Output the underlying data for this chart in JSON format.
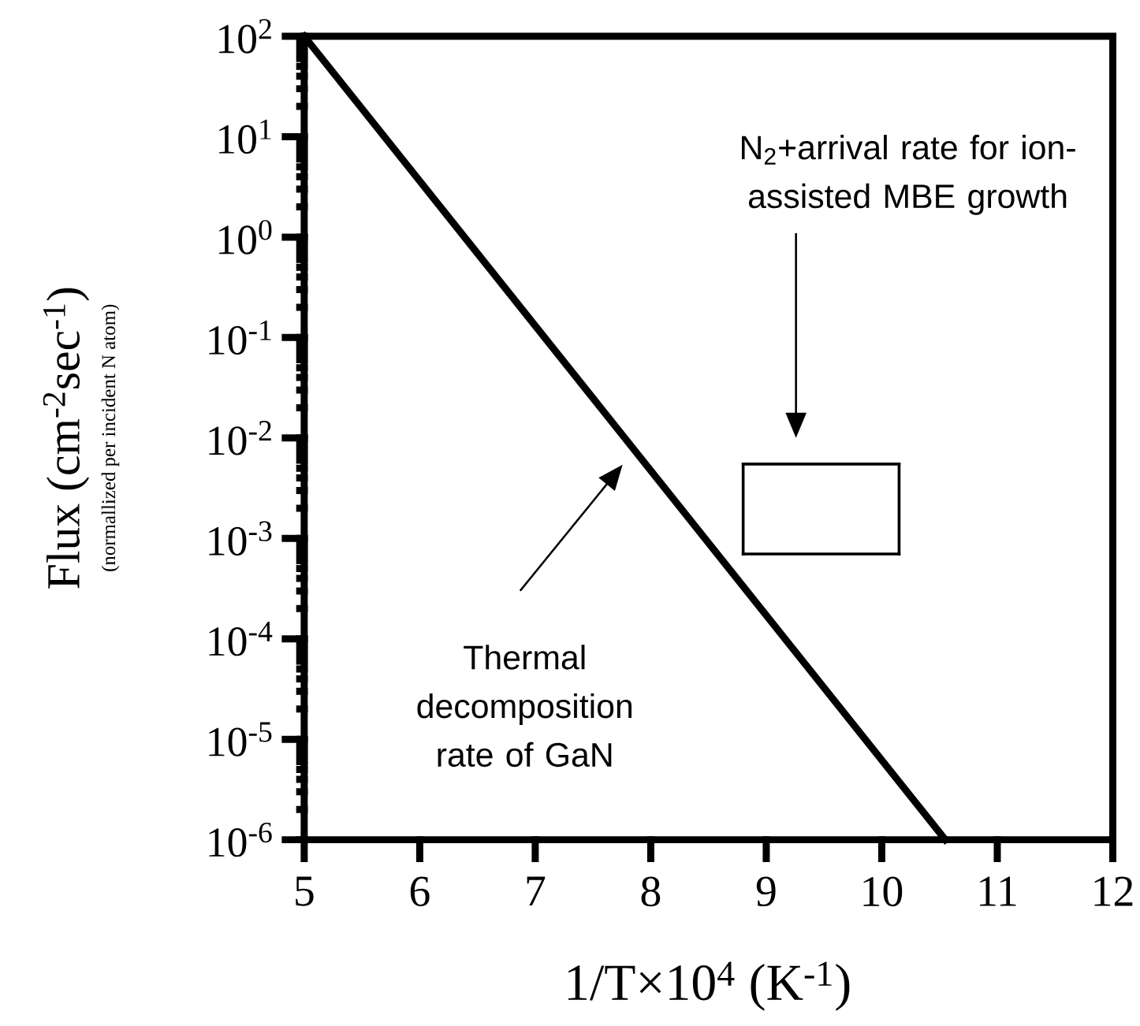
{
  "chart_data": {
    "type": "line",
    "xlabel": "1/T×10$^{4}$ (K$^{-1}$)",
    "ylabel": "Flux (cm$^{-2}$sec$^{-1}$)",
    "log": "y",
    "grid": false,
    "marker": "none",
    "xlim": [
      5,
      12
    ],
    "xticks": [
      5,
      6,
      7,
      8,
      9,
      10,
      11,
      12
    ],
    "ylim": [
      1e-06,
      100
    ],
    "yticks": [
      {
        "value": 1e-06,
        "label": "10$^{-6}$"
      },
      {
        "value": 1e-05,
        "label": "10$^{-5}$"
      },
      {
        "value": 0.0001,
        "label": "10$^{-4}$"
      },
      {
        "value": 0.001,
        "label": "10$^{-3}$"
      },
      {
        "value": 0.01,
        "label": "10$^{-2}$"
      },
      {
        "value": 0.1,
        "label": "10$^{-1}$"
      },
      {
        "value": 1,
        "label": "10$^{0}$"
      },
      {
        "value": 10,
        "label": "10$^{1}$"
      },
      {
        "value": 100,
        "label": "10$^{2}$"
      }
    ],
    "series": [
      {
        "color": "#000000",
        "x": [
          5,
          10.55
        ],
        "values": [
          100,
          1e-06
        ]
      },
      {
        "color": "#000000",
        "x": [
          8.8,
          10.15
        ],
        "values": [
          0.0055,
          0.0055
        ]
      },
      {
        "color": "#000000",
        "x": [
          10.15,
          10.15
        ],
        "values": [
          0.0055,
          0.0007
        ]
      },
      {
        "color": "#000000",
        "x": [
          8.8,
          10.15
        ],
        "values": [
          0.0007,
          0.0007
        ]
      },
      {
        "color": "#000000",
        "x": [
          8.8,
          8.8
        ],
        "values": [
          0.0007,
          0.0055
        ]
      }
    ],
    "annotations": [
      "Thermal decomposition rate of GaN",
      "N$_{2}$+arrival rate for ion-assisted MBE growth",
      "(normallized per incident N atom)"
    ]
  }
}
